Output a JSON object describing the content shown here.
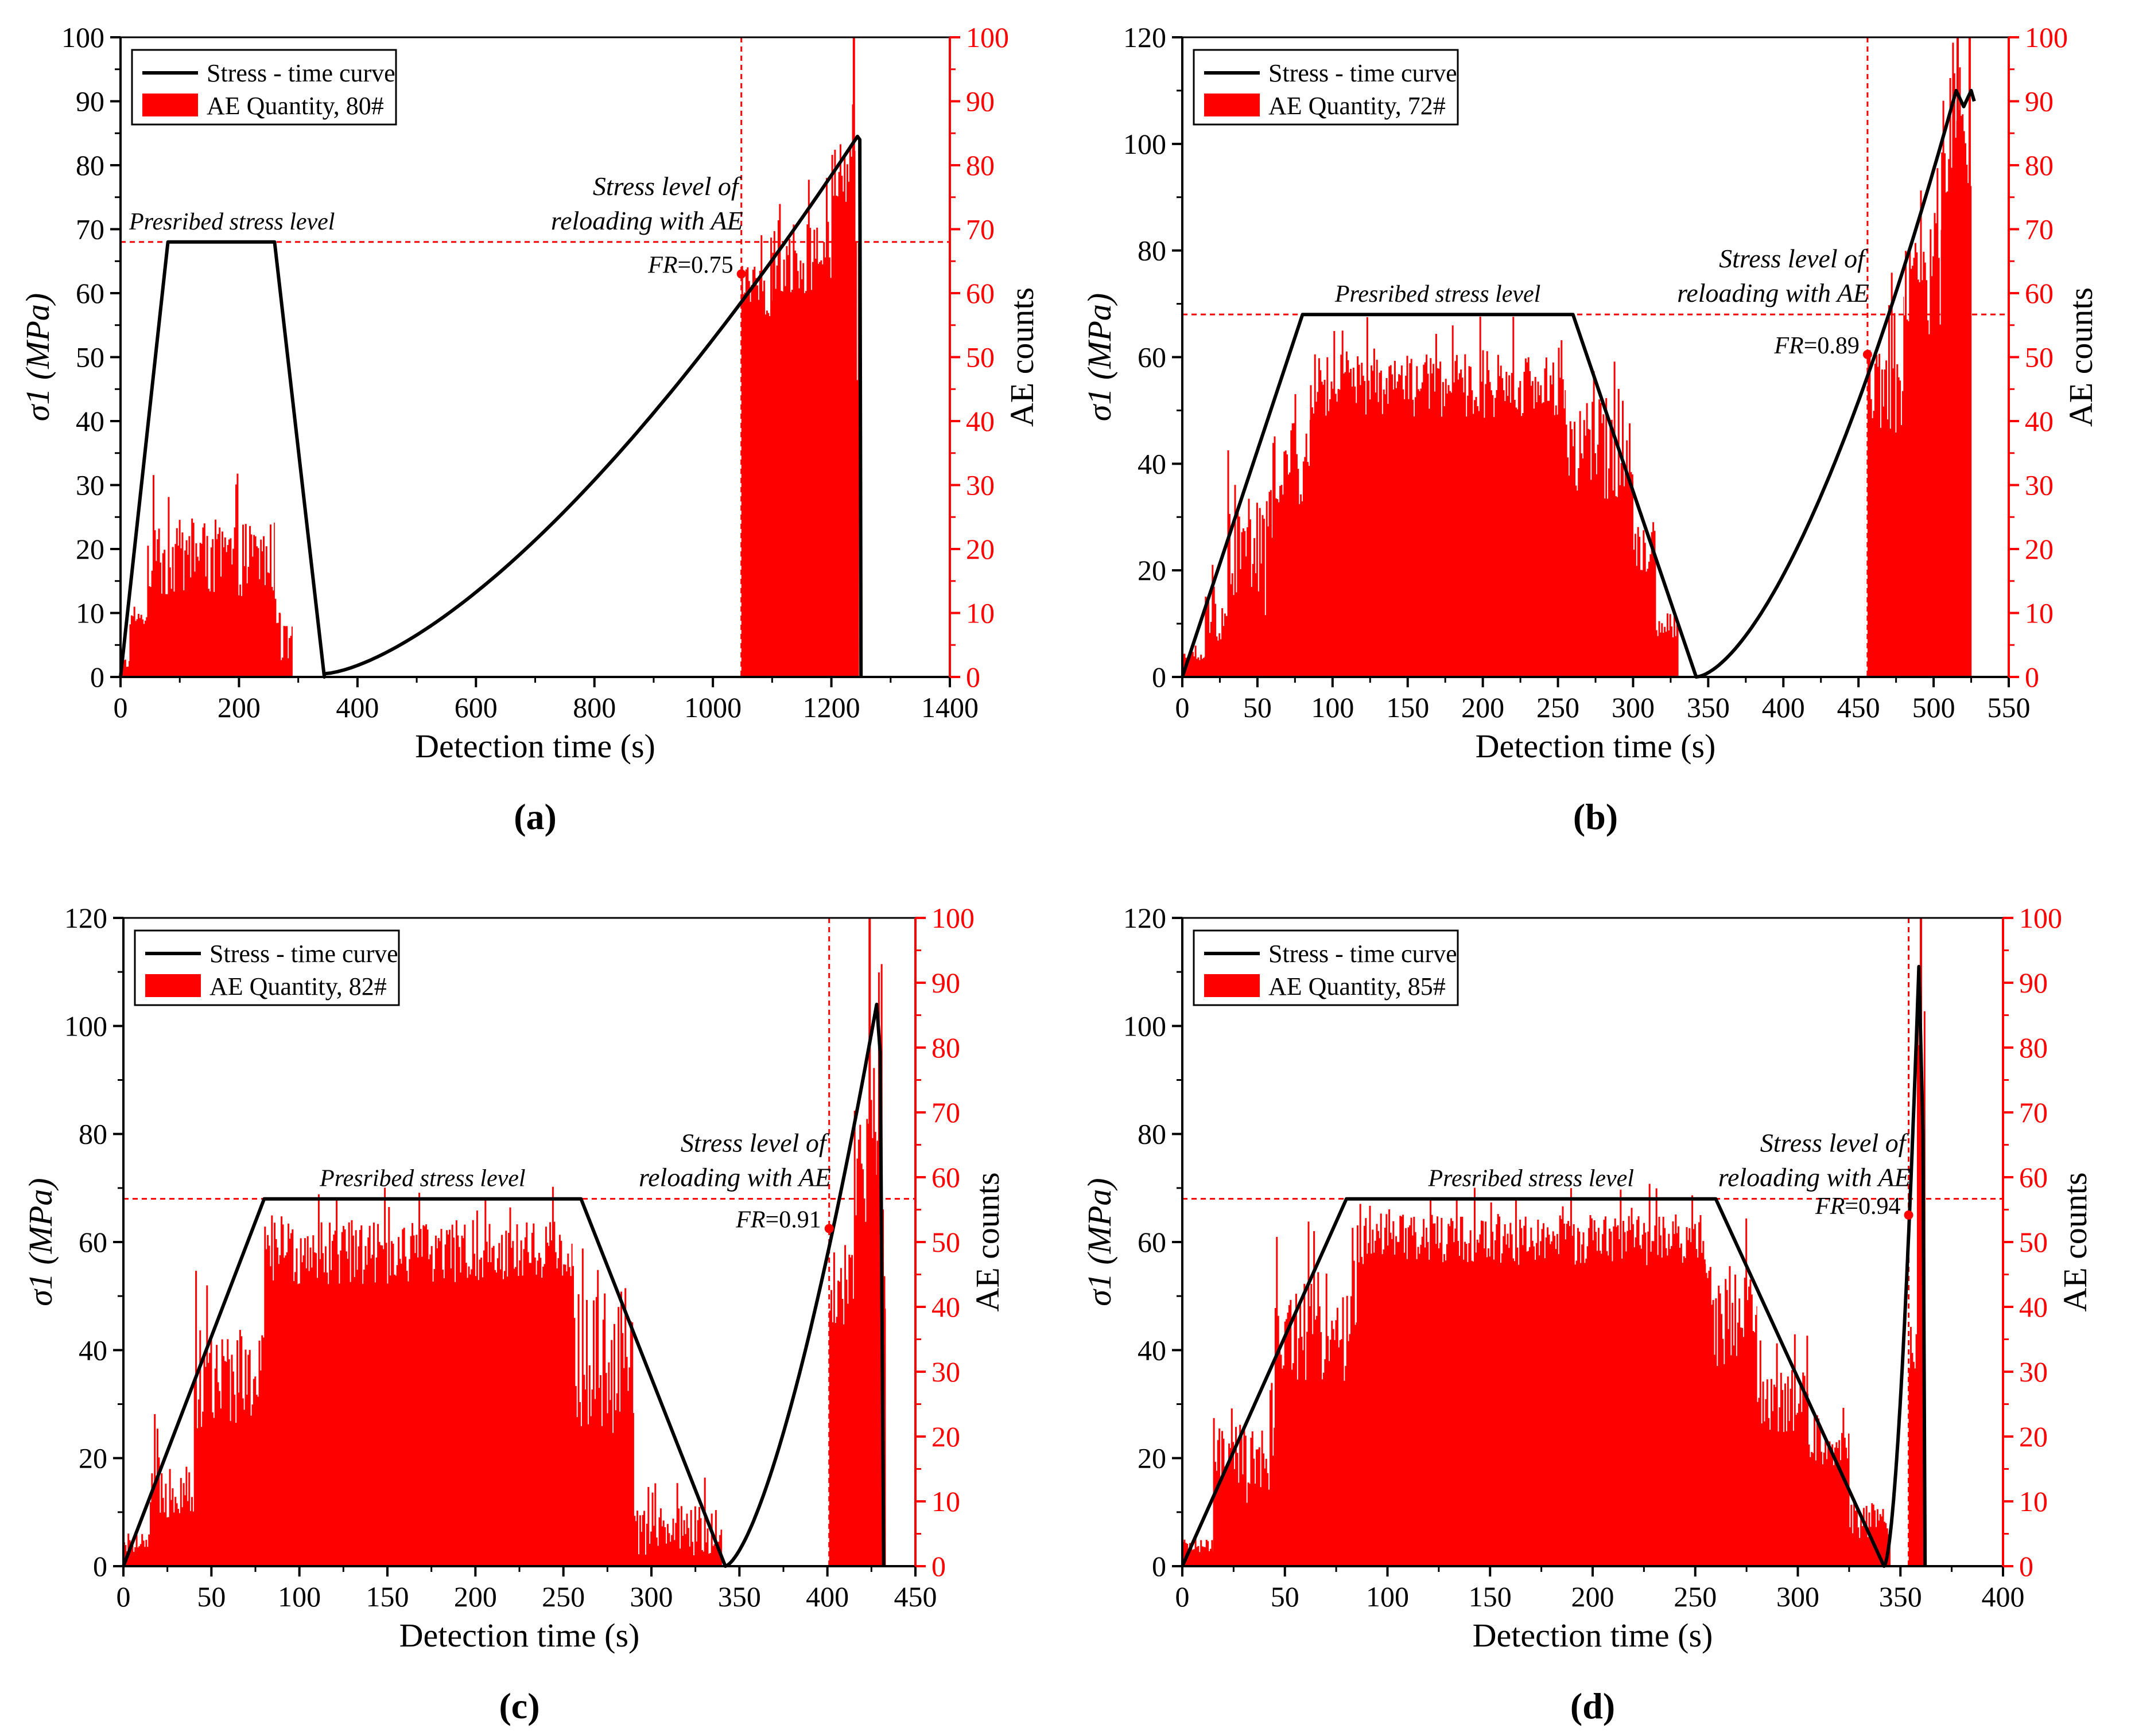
{
  "figure": {
    "colors": {
      "stress": "#000000",
      "ae": "#ff0000",
      "axis_left": "#000000",
      "axis_right": "#ff0000"
    }
  },
  "chart_data": [
    {
      "panel_label": "a",
      "type": "line+bar",
      "xlabel": "Detection time (s)",
      "ylabel": "σ1 (MPa)",
      "y2label": "AE counts",
      "xlim": [
        0,
        1400
      ],
      "xticks": [
        0,
        200,
        400,
        600,
        800,
        1000,
        1200,
        1400
      ],
      "ylim": [
        0,
        100
      ],
      "yticks": [
        0,
        10,
        20,
        30,
        40,
        50,
        60,
        70,
        80,
        90,
        100
      ],
      "y2lim": [
        0,
        100
      ],
      "y2ticks": [
        0,
        10,
        20,
        30,
        40,
        50,
        60,
        70,
        80,
        90,
        100
      ],
      "legend": [
        "Stress - time curve",
        "AE Quantity, 80#"
      ],
      "legend_position": "top-left",
      "prescribed_level": 68,
      "prescribed_label": "Presribed stress level",
      "reload_label_line1": "Stress level of",
      "reload_label_line2": "reloading with AE",
      "reload_time": 1048,
      "fr_label": "FR",
      "fr_value": "=0.75",
      "fr_stress": 63,
      "stress_series": {
        "name": "Stress - time curve",
        "segments": [
          {
            "kind": "linear",
            "points": [
              [
                0,
                0
              ],
              [
                80,
                68
              ],
              [
                260,
                68
              ],
              [
                344,
                0
              ]
            ]
          },
          {
            "kind": "power",
            "t0": 344,
            "t1": 1244,
            "s0": 0.5,
            "s1": 84.5,
            "exp": 1.5
          },
          {
            "kind": "linear",
            "points": [
              [
                1244,
                84.5
              ],
              [
                1248,
                84
              ],
              [
                1250,
                0
              ]
            ]
          }
        ]
      },
      "ae_series": {
        "name": "AE Quantity, 80#",
        "blocks": [
          {
            "t0": 2,
            "t1": 15,
            "base": 2,
            "noise": 1
          },
          {
            "t0": 15,
            "t1": 45,
            "base": 9,
            "noise": 1
          },
          {
            "t0": 45,
            "t1": 260,
            "base": 18,
            "noise": 6
          },
          {
            "t0": 260,
            "t1": 270,
            "base": 10,
            "noise": 3
          },
          {
            "t0": 270,
            "t1": 290,
            "base": 5,
            "noise": 3
          },
          {
            "t0": 1048,
            "t1": 1100,
            "base": 60,
            "noise": 4
          },
          {
            "t0": 1100,
            "t1": 1200,
            "base": 65,
            "noise": 6
          },
          {
            "t0": 1200,
            "t1": 1240,
            "base": 78,
            "noise": 5
          },
          {
            "t0": 1240,
            "t1": 1246,
            "base": 60,
            "noise": 20
          }
        ],
        "spikes": [
          {
            "t": 1238,
            "v": 100
          }
        ]
      }
    },
    {
      "panel_label": "b",
      "type": "line+bar",
      "xlabel": "Detection time (s)",
      "ylabel": "σ1 (MPa)",
      "y2label": "AE counts",
      "xlim": [
        0,
        550
      ],
      "xticks": [
        0,
        50,
        100,
        150,
        200,
        250,
        300,
        350,
        400,
        450,
        500,
        550
      ],
      "ylim": [
        0,
        120
      ],
      "yticks": [
        0,
        20,
        40,
        60,
        80,
        100,
        120
      ],
      "y2lim": [
        0,
        100
      ],
      "y2ticks": [
        0,
        10,
        20,
        30,
        40,
        50,
        60,
        70,
        80,
        90,
        100
      ],
      "legend": [
        "Stress - time curve",
        "AE Quantity, 72#"
      ],
      "legend_position": "top-left",
      "prescribed_level": 68,
      "prescribed_label": "Presribed stress level",
      "reload_label_line1": "Stress level of",
      "reload_label_line2": "reloading with AE",
      "reload_time": 456,
      "fr_label": "FR",
      "fr_value": "=0.89",
      "fr_stress": 60.5,
      "stress_series": {
        "name": "Stress - time curve",
        "segments": [
          {
            "kind": "linear",
            "points": [
              [
                0,
                0
              ],
              [
                80,
                68
              ],
              [
                260,
                68
              ],
              [
                342,
                0
              ]
            ]
          },
          {
            "kind": "power",
            "t0": 342,
            "t1": 515,
            "s0": 0,
            "s1": 110,
            "exp": 1.6
          },
          {
            "kind": "linear",
            "points": [
              [
                515,
                110
              ],
              [
                520,
                107
              ],
              [
                525,
                110
              ],
              [
                527,
                108
              ]
            ]
          }
        ]
      },
      "ae_series": {
        "name": "AE Quantity, 72#",
        "blocks": [
          {
            "t0": 0,
            "t1": 15,
            "base": 3,
            "noise": 1
          },
          {
            "t0": 15,
            "t1": 30,
            "base": 9,
            "noise": 4
          },
          {
            "t0": 30,
            "t1": 60,
            "base": 18,
            "noise": 10
          },
          {
            "t0": 60,
            "t1": 85,
            "base": 32,
            "noise": 6
          },
          {
            "t0": 85,
            "t1": 255,
            "base": 45,
            "noise": 5
          },
          {
            "t0": 255,
            "t1": 300,
            "base": 35,
            "noise": 8
          },
          {
            "t0": 300,
            "t1": 315,
            "base": 20,
            "noise": 4
          },
          {
            "t0": 315,
            "t1": 330,
            "base": 8,
            "noise": 2
          },
          {
            "t0": 456,
            "t1": 480,
            "base": 45,
            "noise": 8
          },
          {
            "t0": 480,
            "t1": 505,
            "base": 62,
            "noise": 10
          },
          {
            "t0": 505,
            "t1": 525,
            "base": 82,
            "noise": 8
          }
        ],
        "spikes": [
          {
            "t": 516,
            "v": 100
          },
          {
            "t": 524,
            "v": 100
          }
        ]
      }
    },
    {
      "panel_label": "c",
      "type": "line+bar",
      "xlabel": "Detection time (s)",
      "ylabel": "σ1 (MPa)",
      "y2label": "AE counts",
      "xlim": [
        0,
        450
      ],
      "xticks": [
        0,
        50,
        100,
        150,
        200,
        250,
        300,
        350,
        400,
        450
      ],
      "ylim": [
        0,
        120
      ],
      "yticks": [
        0,
        20,
        40,
        60,
        80,
        100,
        120
      ],
      "y2lim": [
        0,
        100
      ],
      "y2ticks": [
        0,
        10,
        20,
        30,
        40,
        50,
        60,
        70,
        80,
        90,
        100
      ],
      "legend": [
        "Stress - time curve",
        "AE Quantity, 82#"
      ],
      "legend_position": "top-left",
      "prescribed_level": 68,
      "prescribed_label": "Presribed stress level",
      "reload_label_line1": "Stress level of",
      "reload_label_line2": "reloading with AE",
      "reload_time": 401,
      "fr_label": "FR",
      "fr_value": "=0.91",
      "fr_stress": 62.5,
      "stress_series": {
        "name": "Stress - time curve",
        "segments": [
          {
            "kind": "linear",
            "points": [
              [
                0,
                0
              ],
              [
                80,
                68
              ],
              [
                260,
                68
              ],
              [
                342,
                0
              ]
            ]
          },
          {
            "kind": "power",
            "t0": 342,
            "t1": 428,
            "s0": 0,
            "s1": 104,
            "exp": 1.5
          },
          {
            "kind": "linear",
            "points": [
              [
                428,
                104
              ],
              [
                430,
                95
              ],
              [
                432,
                0
              ]
            ]
          }
        ]
      },
      "ae_series": {
        "name": "AE Quantity, 82#",
        "blocks": [
          {
            "t0": 0,
            "t1": 15,
            "base": 3,
            "noise": 1
          },
          {
            "t0": 15,
            "t1": 40,
            "base": 12,
            "noise": 5
          },
          {
            "t0": 40,
            "t1": 80,
            "base": 28,
            "noise": 8
          },
          {
            "t0": 80,
            "t1": 255,
            "base": 48,
            "noise": 5
          },
          {
            "t0": 255,
            "t1": 290,
            "base": 30,
            "noise": 12
          },
          {
            "t0": 290,
            "t1": 340,
            "base": 5,
            "noise": 4
          },
          {
            "t0": 401,
            "t1": 415,
            "base": 42,
            "noise": 6
          },
          {
            "t0": 415,
            "t1": 428,
            "base": 62,
            "noise": 10
          },
          {
            "t0": 428,
            "t1": 433,
            "base": 55,
            "noise": 25
          }
        ],
        "spikes": [
          {
            "t": 424,
            "v": 100
          }
        ]
      }
    },
    {
      "panel_label": "d",
      "type": "line+bar",
      "xlabel": "Detection time (s)",
      "ylabel": "σ1 (MPa)",
      "y2label": "AE counts",
      "xlim": [
        0,
        400
      ],
      "xticks": [
        0,
        50,
        100,
        150,
        200,
        250,
        300,
        350,
        400
      ],
      "ylim": [
        0,
        120
      ],
      "yticks": [
        0,
        20,
        40,
        60,
        80,
        100,
        120
      ],
      "y2lim": [
        0,
        100
      ],
      "y2ticks": [
        0,
        10,
        20,
        30,
        40,
        50,
        60,
        70,
        80,
        90,
        100
      ],
      "legend": [
        "Stress - time curve",
        "AE Quantity, 85#"
      ],
      "legend_position": "top-left",
      "prescribed_level": 68,
      "prescribed_label": "Presribed stress level",
      "reload_label_line1": "Stress level of",
      "reload_label_line2": "reloading with AE",
      "reload_time": 354,
      "fr_label": "FR",
      "fr_value": "=0.94",
      "fr_stress": 65,
      "stress_series": {
        "name": "Stress - time curve",
        "segments": [
          {
            "kind": "linear",
            "points": [
              [
                0,
                0
              ],
              [
                80,
                68
              ],
              [
                260,
                68
              ],
              [
                342,
                0
              ]
            ]
          },
          {
            "kind": "power",
            "t0": 342,
            "t1": 359,
            "s0": 0,
            "s1": 111,
            "exp": 1.7
          },
          {
            "kind": "linear",
            "points": [
              [
                359,
                111
              ],
              [
                361,
                80
              ],
              [
                362,
                0
              ]
            ]
          }
        ]
      },
      "ae_series": {
        "name": "AE Quantity, 85#",
        "blocks": [
          {
            "t0": 0,
            "t1": 15,
            "base": 3,
            "noise": 1
          },
          {
            "t0": 15,
            "t1": 45,
            "base": 15,
            "noise": 6
          },
          {
            "t0": 45,
            "t1": 85,
            "base": 35,
            "noise": 8
          },
          {
            "t0": 85,
            "t1": 255,
            "base": 50,
            "noise": 4
          },
          {
            "t0": 255,
            "t1": 280,
            "base": 38,
            "noise": 8
          },
          {
            "t0": 280,
            "t1": 305,
            "base": 25,
            "noise": 5
          },
          {
            "t0": 305,
            "t1": 325,
            "base": 18,
            "noise": 3
          },
          {
            "t0": 325,
            "t1": 345,
            "base": 7,
            "noise": 3
          },
          {
            "t0": 354,
            "t1": 358,
            "base": 33,
            "noise": 4
          },
          {
            "t0": 358,
            "t1": 362,
            "base": 70,
            "noise": 20
          }
        ],
        "spikes": [
          {
            "t": 360,
            "v": 100
          }
        ]
      }
    }
  ]
}
